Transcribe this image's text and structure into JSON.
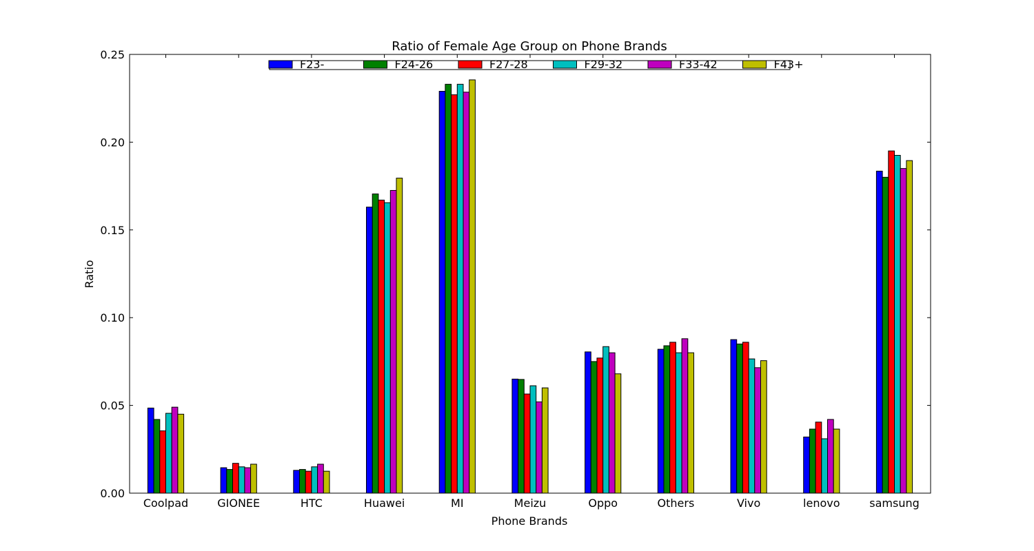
{
  "chart_data": {
    "type": "bar",
    "title": "Ratio of Female Age Group on Phone Brands",
    "xlabel": "Phone Brands",
    "ylabel": "Ratio",
    "ylim": [
      0,
      0.25
    ],
    "yticks": [
      "0.00",
      "0.05",
      "0.10",
      "0.15",
      "0.20",
      "0.25"
    ],
    "legend_position": "top-center",
    "grid": false,
    "categories": [
      "Coolpad",
      "GIONEE",
      "HTC",
      "Huawei",
      "MI",
      "Meizu",
      "Oppo",
      "Others",
      "Vivo",
      "lenovo",
      "samsung"
    ],
    "series": [
      {
        "name": "F23-",
        "color": "#0000ff",
        "values": [
          0.0485,
          0.0145,
          0.013,
          0.163,
          0.229,
          0.065,
          0.0805,
          0.082,
          0.0875,
          0.032,
          0.1835
        ]
      },
      {
        "name": "F24-26",
        "color": "#008000",
        "values": [
          0.042,
          0.0135,
          0.0135,
          0.1705,
          0.233,
          0.0648,
          0.075,
          0.084,
          0.085,
          0.0365,
          0.18
        ]
      },
      {
        "name": "F27-28",
        "color": "#ff0000",
        "values": [
          0.0355,
          0.017,
          0.0125,
          0.167,
          0.227,
          0.0565,
          0.077,
          0.086,
          0.086,
          0.0405,
          0.195
        ]
      },
      {
        "name": "F29-32",
        "color": "#00bfbf",
        "values": [
          0.0455,
          0.015,
          0.015,
          0.1655,
          0.233,
          0.0612,
          0.0835,
          0.08,
          0.0765,
          0.031,
          0.1925
        ]
      },
      {
        "name": "F33-42",
        "color": "#bf00bf",
        "values": [
          0.049,
          0.0145,
          0.0165,
          0.1725,
          0.2285,
          0.052,
          0.08,
          0.088,
          0.0715,
          0.042,
          0.185
        ]
      },
      {
        "name": "F43+",
        "color": "#bfbf00",
        "values": [
          0.045,
          0.0165,
          0.0125,
          0.1795,
          0.2355,
          0.06,
          0.068,
          0.08,
          0.0755,
          0.0365,
          0.1895
        ]
      }
    ]
  }
}
